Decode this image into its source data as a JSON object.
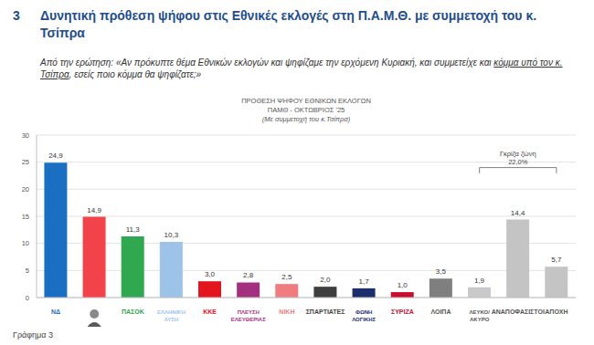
{
  "page": {
    "section": "3",
    "heading": "Δυνητική πρόθεση ψήφου στις Εθνικές εκλογές στη Π.Α.Μ.Θ.  με συμμετοχή του κ. Τσίπρα",
    "question": {
      "before": "Από την ερώτηση: «Αν πρόκυπτε θέμα Εθνικών εκλογών και ψηφίζαμε την ερχόμενη Κυριακή, και συμμετείχε και ",
      "underlined": "κόμμα υπό τον κ. Τσίπρα",
      "after": ", εσείς ποιο κόμμα θα ψηφίζατε;»"
    },
    "caption": "Γράφημα 3"
  },
  "chart_data": {
    "type": "bar",
    "title": "ΠΡΟΘΕΣΗ ΨΗΦΟΥ  ΕΘΝΙΚΩΝ ΕΚΛΟΓΩΝ",
    "subtitle": [
      "ΠΑΜΘ - ΟΚΤΩΒΡΙΟΣ '25",
      "(Με συμμετοχή του κ.Τσίπρα)"
    ],
    "categories": [
      "ΝΔ",
      null,
      "ΠΑΣΟΚ",
      "ΕΛΛΗΝΙΚΗ ΛΥΣΗ",
      "ΚΚΕ",
      "ΠΛΕΥΣΗ ΕΛΕΥΘΕΡΙΑΣ",
      "ΝΙΚΗ",
      "ΣΠΑΡΤΙΑΤΕΣ",
      "ΦΩΝΗ ΛΟΓΙΚΗΣ",
      "ΣΥΡΙΖΑ",
      "ΛΟΙΠΑ",
      "ΛΕΥΚΟ/ΑΚΥΡΟ",
      "ΑΝΑΠΟΦΑΣΙΣΤΟΙ",
      "ΑΠΟΧΗ"
    ],
    "values": [
      24.9,
      14.9,
      11.3,
      10.3,
      3.0,
      2.8,
      2.5,
      2.0,
      1.7,
      1.0,
      3.5,
      1.9,
      14.4,
      5.7
    ],
    "value_labels": [
      "24,9",
      "14,9",
      "11,3",
      "10,3",
      "3,0",
      "2,8",
      "2,5",
      "2,0",
      "1,7",
      "1,0",
      "3,5",
      "1,9",
      "14,4",
      "5,7"
    ],
    "colors": [
      "#1b6fc2",
      "#f2434b",
      "#2fa84f",
      "#9dc3e8",
      "#e3151d",
      "#a3307f",
      "#f07c80",
      "#3f3f3f",
      "#1b2d6b",
      "#c8102e",
      "#7f7f7f",
      "#c9c9c9",
      "#c4c4c4",
      "#c4c4c4"
    ],
    "ylim": [
      0,
      30
    ],
    "yticks": [
      0,
      5,
      10,
      15,
      20,
      25,
      30
    ],
    "grid": true,
    "data_labels": true,
    "annotations": [
      {
        "text": "Γκρίζα ζώνη",
        "value_text": "22,0%",
        "from": "ΛΕΥΚΟ/ΑΚΥΡΟ",
        "to": "ΑΠΟΧΗ"
      }
    ]
  }
}
